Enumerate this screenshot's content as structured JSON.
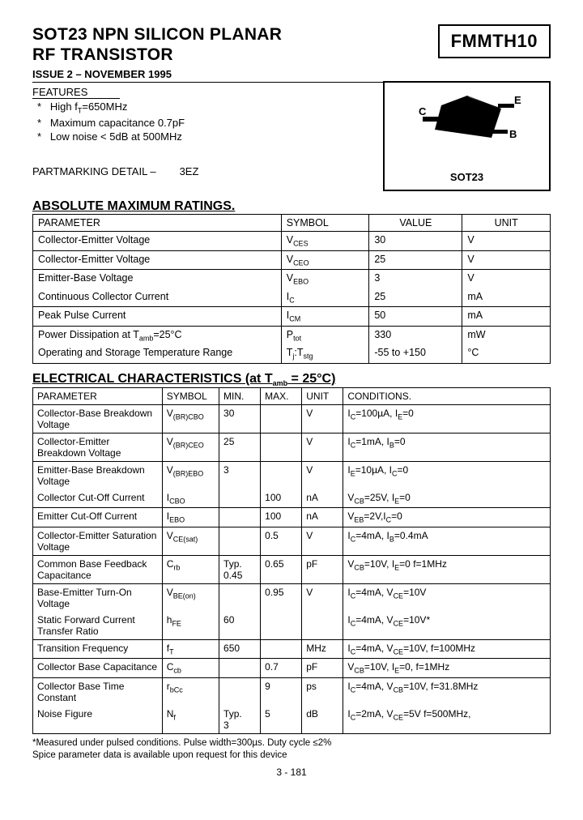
{
  "header": {
    "title_line1": "SOT23 NPN SILICON PLANAR",
    "title_line2": "RF TRANSISTOR",
    "part_number": "FMMTH10",
    "issue_line": "ISSUE 2 – NOVEMBER 1995"
  },
  "features": {
    "heading": "FEATURES",
    "items": [
      "High f_T=650MHz",
      "Maximum capacitance 0.7pF",
      "Low noise < 5dB at 500MHz"
    ],
    "partmark_label": "PARTMARKING DETAIL –",
    "partmark_value": "3EZ"
  },
  "package": {
    "label": "SOT23",
    "pin_c": "C",
    "pin_e": "E",
    "pin_b": "B"
  },
  "amr": {
    "heading": "ABSOLUTE MAXIMUM RATINGS.",
    "cols": [
      "PARAMETER",
      "SYMBOL",
      "VALUE",
      "UNIT"
    ],
    "rows": [
      {
        "p": "Collector-Emitter Voltage",
        "s": "V_CES",
        "v": "30",
        "u": "V",
        "sep": true
      },
      {
        "p": "Collector-Emitter Voltage",
        "s": "V_CEO",
        "v": "25",
        "u": "V",
        "sep": true
      },
      {
        "p": "Emitter-Base Voltage",
        "s": "V_EBO",
        "v": "3",
        "u": "V",
        "sep": false
      },
      {
        "p": "Continuous Collector Current",
        "s": "I_C",
        "v": "25",
        "u": "mA",
        "sep": true
      },
      {
        "p": "Peak Pulse Current",
        "s": "I_CM",
        "v": "50",
        "u": "mA",
        "sep": true
      },
      {
        "p": "Power Dissipation at T_amb=25°C",
        "s": "P_tot",
        "v": "330",
        "u": "mW",
        "sep": false
      },
      {
        "p": "Operating and Storage Temperature Range",
        "s": "T_j:T_stg",
        "v": "-55 to +150",
        "u": "°C",
        "sep": true
      }
    ]
  },
  "ec": {
    "heading": "ELECTRICAL CHARACTERISTICS (at T_amb = 25°C)",
    "cols": [
      "PARAMETER",
      "SYMBOL",
      "MIN.",
      "MAX.",
      "UNIT",
      "CONDITIONS."
    ],
    "rows": [
      {
        "p": "Collector-Base Breakdown Voltage",
        "s": "V_(BR)CBO",
        "min": "30",
        "max": "",
        "u": "V",
        "c": "I_C=100µA, I_E=0",
        "sep": true
      },
      {
        "p": "Collector-Emitter Breakdown Voltage",
        "s": "V_(BR)CEO",
        "min": "25",
        "max": "",
        "u": "V",
        "c": "I_C=1mA, I_B=0",
        "sep": true
      },
      {
        "p": "Emitter-Base Breakdown Voltage",
        "s": "V_(BR)EBO",
        "min": "3",
        "max": "",
        "u": "V",
        "c": "I_E=10µA, I_C=0",
        "sep": false
      },
      {
        "p": "Collector Cut-Off Current",
        "s": "I_CBO",
        "min": "",
        "max": "100",
        "u": "nA",
        "c": "V_CB=25V, I_E=0",
        "sep": true
      },
      {
        "p": "Emitter Cut-Off Current",
        "s": "I_EBO",
        "min": "",
        "max": "100",
        "u": "nA",
        "c": "V_EB=2V,I_C=0",
        "sep": true
      },
      {
        "p": "Collector-Emitter Saturation Voltage",
        "s": "V_CE(sat)",
        "min": "",
        "max": "0.5",
        "u": "V",
        "c": "I_C=4mA, I_B=0.4mA",
        "sep": true
      },
      {
        "p": "Common Base Feedback Capacitance",
        "s": "C_rb",
        "min": "Typ. 0.45",
        "max": "0.65",
        "u": "pF",
        "c": "V_CB=10V, I_E=0 f=1MHz",
        "sep": true
      },
      {
        "p": "Base-Emitter Turn-On Voltage",
        "s": "V_BE(on)",
        "min": "",
        "max": "0.95",
        "u": "V",
        "c": "I_C=4mA, V_CE=10V",
        "sep": false
      },
      {
        "p": "Static Forward Current Transfer Ratio",
        "s": "h_FE",
        "min": "60",
        "max": "",
        "u": "",
        "c": "I_C=4mA, V_CE=10V*",
        "sep": true
      },
      {
        "p": "Transition Frequency",
        "s": "f_T",
        "min": "650",
        "max": "",
        "u": "MHz",
        "c": "I_C=4mA, V_CE=10V, f=100MHz",
        "sep": true
      },
      {
        "p": "Collector Base Capacitance",
        "s": "C_cb",
        "min": "",
        "max": "0.7",
        "u": "pF",
        "c": "V_CB=10V, I_E=0, f=1MHz",
        "sep": true
      },
      {
        "p": "Collector Base Time Constant",
        "s": "r_bC_c",
        "min": "",
        "max": "9",
        "u": "ps",
        "c": "I_C=4mA, V_CB=10V, f=31.8MHz",
        "sep": false
      },
      {
        "p": "Noise Figure",
        "s": "N_f",
        "min": "Typ. 3",
        "max": "5",
        "u": "dB",
        "c": "I_C=2mA, V_CE=5V f=500MHz,",
        "sep": true
      }
    ]
  },
  "footnote_line1": "*Measured under pulsed conditions. Pulse width=300µs. Duty cycle ≤2%",
  "footnote_line2": "Spice parameter data is available upon request for this device",
  "page_number": "3 - 181"
}
